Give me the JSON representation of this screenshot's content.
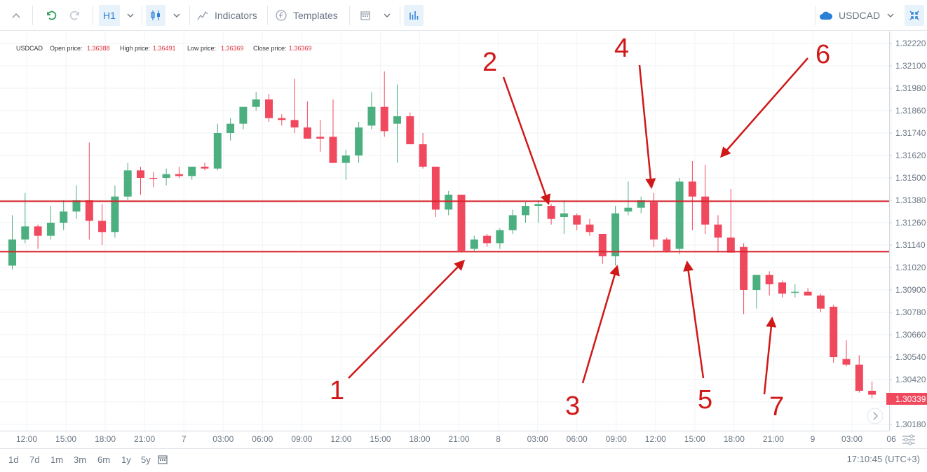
{
  "toolbar": {
    "timeframe": "H1",
    "indicators_label": "Indicators",
    "templates_label": "Templates",
    "symbol": "USDCAD"
  },
  "legend": {
    "symbol": "USDCAD",
    "open_label": "Open price:",
    "open_value": "1.36388",
    "high_label": "High price:",
    "high_value": "1.36491",
    "low_label": "Low price:",
    "low_value": "1.36369",
    "close_label": "Close price:",
    "close_value": "1.36369"
  },
  "bottom": {
    "ranges": [
      "1d",
      "7d",
      "1m",
      "3m",
      "6m",
      "1y",
      "5y"
    ],
    "clock": "17:10:45 (UTC+3)"
  },
  "colors": {
    "up": "#4caf7f",
    "down": "#f0495e",
    "line": "#d8232a",
    "annotation": "#d01818",
    "price_tag": "#f0495e"
  },
  "chart_data": {
    "type": "candlestick",
    "symbol": "USDCAD",
    "timeframe": "H1",
    "y_ticks": [
      "1.32220",
      "1.32100",
      "1.31980",
      "1.31860",
      "1.31740",
      "1.31620",
      "1.31500",
      "1.31380",
      "1.31260",
      "1.31140",
      "1.31020",
      "1.30900",
      "1.30780",
      "1.30660",
      "1.30540",
      "1.30420",
      "1.30300",
      "1.30180"
    ],
    "ylim": [
      1.3018,
      1.3222
    ],
    "x_ticks": [
      "12:00",
      "15:00",
      "18:00",
      "21:00",
      "7",
      "03:00",
      "06:00",
      "09:00",
      "12:00",
      "15:00",
      "18:00",
      "21:00",
      "8",
      "03:00",
      "06:00",
      "09:00",
      "12:00",
      "15:00",
      "18:00",
      "21:00",
      "9",
      "03:00",
      "06"
    ],
    "current_price": "1.30339",
    "horizontal_lines": [
      1.31375,
      1.31105
    ],
    "annotations": [
      "1",
      "2",
      "3",
      "4",
      "5",
      "6",
      "7"
    ],
    "candles": [
      {
        "o": 1.3103,
        "h": 1.313,
        "l": 1.3101,
        "c": 1.3117
      },
      {
        "o": 1.3117,
        "h": 1.3142,
        "l": 1.3115,
        "c": 1.3124
      },
      {
        "o": 1.3124,
        "h": 1.3125,
        "l": 1.3112,
        "c": 1.3119
      },
      {
        "o": 1.3119,
        "h": 1.3135,
        "l": 1.3117,
        "c": 1.3126
      },
      {
        "o": 1.3126,
        "h": 1.3138,
        "l": 1.3122,
        "c": 1.3132
      },
      {
        "o": 1.3132,
        "h": 1.3146,
        "l": 1.3128,
        "c": 1.3138
      },
      {
        "o": 1.3138,
        "h": 1.3169,
        "l": 1.3117,
        "c": 1.3127
      },
      {
        "o": 1.3127,
        "h": 1.3136,
        "l": 1.3114,
        "c": 1.3121
      },
      {
        "o": 1.3121,
        "h": 1.3146,
        "l": 1.3118,
        "c": 1.314
      },
      {
        "o": 1.314,
        "h": 1.3158,
        "l": 1.3138,
        "c": 1.3154
      },
      {
        "o": 1.3154,
        "h": 1.3156,
        "l": 1.3141,
        "c": 1.315
      },
      {
        "o": 1.315,
        "h": 1.3153,
        "l": 1.3145,
        "c": 1.31495
      },
      {
        "o": 1.315,
        "h": 1.3155,
        "l": 1.3146,
        "c": 1.3152
      },
      {
        "o": 1.3152,
        "h": 1.3156,
        "l": 1.315,
        "c": 1.3151
      },
      {
        "o": 1.3151,
        "h": 1.3156,
        "l": 1.3149,
        "c": 1.3156
      },
      {
        "o": 1.3156,
        "h": 1.3158,
        "l": 1.3154,
        "c": 1.3155
      },
      {
        "o": 1.3155,
        "h": 1.3179,
        "l": 1.3154,
        "c": 1.3174
      },
      {
        "o": 1.3174,
        "h": 1.3182,
        "l": 1.317,
        "c": 1.3179
      },
      {
        "o": 1.3179,
        "h": 1.3188,
        "l": 1.3176,
        "c": 1.3188
      },
      {
        "o": 1.3188,
        "h": 1.3196,
        "l": 1.3186,
        "c": 1.3192
      },
      {
        "o": 1.3192,
        "h": 1.3195,
        "l": 1.318,
        "c": 1.3182
      },
      {
        "o": 1.3182,
        "h": 1.3184,
        "l": 1.3178,
        "c": 1.3181
      },
      {
        "o": 1.3181,
        "h": 1.3203,
        "l": 1.3174,
        "c": 1.3177
      },
      {
        "o": 1.3177,
        "h": 1.3191,
        "l": 1.3173,
        "c": 1.3171
      },
      {
        "o": 1.3172,
        "h": 1.3181,
        "l": 1.3164,
        "c": 1.3171
      },
      {
        "o": 1.3172,
        "h": 1.3192,
        "l": 1.3158,
        "c": 1.3158
      },
      {
        "o": 1.3158,
        "h": 1.3165,
        "l": 1.3149,
        "c": 1.3162
      },
      {
        "o": 1.3162,
        "h": 1.318,
        "l": 1.3158,
        "c": 1.3177
      },
      {
        "o": 1.3178,
        "h": 1.3196,
        "l": 1.3176,
        "c": 1.3188
      },
      {
        "o": 1.3188,
        "h": 1.3207,
        "l": 1.3172,
        "c": 1.3175
      },
      {
        "o": 1.3179,
        "h": 1.32,
        "l": 1.3158,
        "c": 1.3183
      },
      {
        "o": 1.3183,
        "h": 1.3185,
        "l": 1.3168,
        "c": 1.3168
      },
      {
        "o": 1.3168,
        "h": 1.3174,
        "l": 1.3155,
        "c": 1.3156
      },
      {
        "o": 1.3156,
        "h": 1.3156,
        "l": 1.3129,
        "c": 1.3133
      },
      {
        "o": 1.3133,
        "h": 1.3143,
        "l": 1.313,
        "c": 1.3141
      },
      {
        "o": 1.3141,
        "h": 1.3141,
        "l": 1.311,
        "c": 1.3111
      },
      {
        "o": 1.3112,
        "h": 1.3119,
        "l": 1.3111,
        "c": 1.3117
      },
      {
        "o": 1.3119,
        "h": 1.312,
        "l": 1.3113,
        "c": 1.3115
      },
      {
        "o": 1.3115,
        "h": 1.3123,
        "l": 1.3112,
        "c": 1.3122
      },
      {
        "o": 1.3122,
        "h": 1.3133,
        "l": 1.312,
        "c": 1.313
      },
      {
        "o": 1.313,
        "h": 1.3137,
        "l": 1.3126,
        "c": 1.3135
      },
      {
        "o": 1.3135,
        "h": 1.3138,
        "l": 1.3126,
        "c": 1.3136
      },
      {
        "o": 1.3135,
        "h": 1.3136,
        "l": 1.3125,
        "c": 1.3128
      },
      {
        "o": 1.3129,
        "h": 1.3138,
        "l": 1.312,
        "c": 1.3131
      },
      {
        "o": 1.313,
        "h": 1.3131,
        "l": 1.3122,
        "c": 1.3125
      },
      {
        "o": 1.3125,
        "h": 1.3128,
        "l": 1.3119,
        "c": 1.3121
      },
      {
        "o": 1.312,
        "h": 1.312,
        "l": 1.3104,
        "c": 1.3108
      },
      {
        "o": 1.3108,
        "h": 1.3135,
        "l": 1.3103,
        "c": 1.3131
      },
      {
        "o": 1.3132,
        "h": 1.3148,
        "l": 1.313,
        "c": 1.3134
      },
      {
        "o": 1.3134,
        "h": 1.314,
        "l": 1.3131,
        "c": 1.3138
      },
      {
        "o": 1.3137,
        "h": 1.3142,
        "l": 1.3113,
        "c": 1.3117
      },
      {
        "o": 1.3117,
        "h": 1.3118,
        "l": 1.311,
        "c": 1.3111
      },
      {
        "o": 1.3112,
        "h": 1.315,
        "l": 1.3109,
        "c": 1.3148
      },
      {
        "o": 1.3148,
        "h": 1.3159,
        "l": 1.3122,
        "c": 1.314
      },
      {
        "o": 1.314,
        "h": 1.3157,
        "l": 1.312,
        "c": 1.3125
      },
      {
        "o": 1.3125,
        "h": 1.313,
        "l": 1.311,
        "c": 1.3118
      },
      {
        "o": 1.3118,
        "h": 1.3144,
        "l": 1.311,
        "c": 1.311
      },
      {
        "o": 1.3113,
        "h": 1.3115,
        "l": 1.3077,
        "c": 1.309
      },
      {
        "o": 1.309,
        "h": 1.3098,
        "l": 1.308,
        "c": 1.3098
      },
      {
        "o": 1.3098,
        "h": 1.31,
        "l": 1.3087,
        "c": 1.3093
      },
      {
        "o": 1.3094,
        "h": 1.3095,
        "l": 1.3086,
        "c": 1.3088
      },
      {
        "o": 1.3089,
        "h": 1.3093,
        "l": 1.3086,
        "c": 1.3089
      },
      {
        "o": 1.3089,
        "h": 1.3091,
        "l": 1.3087,
        "c": 1.3087
      },
      {
        "o": 1.3087,
        "h": 1.3088,
        "l": 1.3078,
        "c": 1.308
      },
      {
        "o": 1.3081,
        "h": 1.3082,
        "l": 1.3051,
        "c": 1.3054
      },
      {
        "o": 1.3053,
        "h": 1.3063,
        "l": 1.3049,
        "c": 1.305
      },
      {
        "o": 1.305,
        "h": 1.3055,
        "l": 1.3035,
        "c": 1.3036
      },
      {
        "o": 1.3036,
        "h": 1.3041,
        "l": 1.3032,
        "c": 1.30339
      }
    ]
  }
}
